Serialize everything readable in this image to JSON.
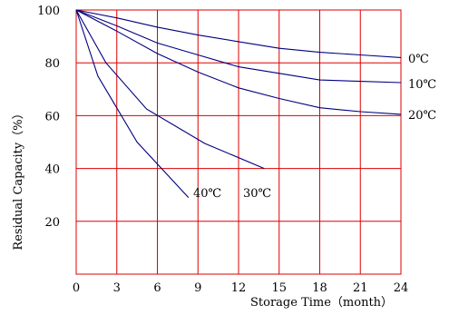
{
  "chart_data": {
    "type": "line",
    "title": "",
    "xlabel": "Storage Time（month）",
    "ylabel": "Residual Capacity（%）",
    "xlim": [
      0,
      24
    ],
    "ylim": [
      0,
      100
    ],
    "xticks": [
      0,
      3,
      6,
      9,
      12,
      15,
      18,
      21,
      24
    ],
    "yticks": [
      20,
      40,
      60,
      80,
      100
    ],
    "x_tick_labels": [
      "0",
      "3",
      "6",
      "9",
      "12",
      "15",
      "18",
      "21",
      "24"
    ],
    "y_tick_labels": [
      "20",
      "40",
      "60",
      "80",
      "100"
    ],
    "grid": true,
    "grid_color": "#dd0000",
    "line_color": "#00007f",
    "series": [
      {
        "name": "0℃",
        "points": [
          [
            0,
            100
          ],
          [
            3,
            97
          ],
          [
            6,
            93.5
          ],
          [
            9,
            90.5
          ],
          [
            12,
            88
          ],
          [
            15,
            85.5
          ],
          [
            18,
            84
          ],
          [
            21,
            83
          ],
          [
            24,
            82
          ]
        ]
      },
      {
        "name": "10℃",
        "points": [
          [
            0,
            100
          ],
          [
            3,
            94
          ],
          [
            6,
            87.5
          ],
          [
            9,
            83
          ],
          [
            12,
            78.5
          ],
          [
            15,
            76
          ],
          [
            18,
            73.5
          ],
          [
            21,
            73
          ],
          [
            24,
            72.5
          ]
        ]
      },
      {
        "name": "20℃",
        "points": [
          [
            0,
            100
          ],
          [
            3,
            92
          ],
          [
            6,
            83.5
          ],
          [
            9,
            76.5
          ],
          [
            12,
            70.5
          ],
          [
            15,
            66.5
          ],
          [
            18,
            63
          ],
          [
            21,
            61.5
          ],
          [
            24,
            60.5
          ]
        ]
      },
      {
        "name": "30℃",
        "points": [
          [
            0,
            100
          ],
          [
            2.2,
            80
          ],
          [
            5.2,
            62.5
          ],
          [
            9.5,
            49.5
          ],
          [
            13.9,
            40
          ]
        ]
      },
      {
        "name": "40℃",
        "points": [
          [
            0,
            100
          ],
          [
            1.6,
            75
          ],
          [
            4.5,
            50
          ],
          [
            8.3,
            29
          ]
        ]
      }
    ]
  }
}
